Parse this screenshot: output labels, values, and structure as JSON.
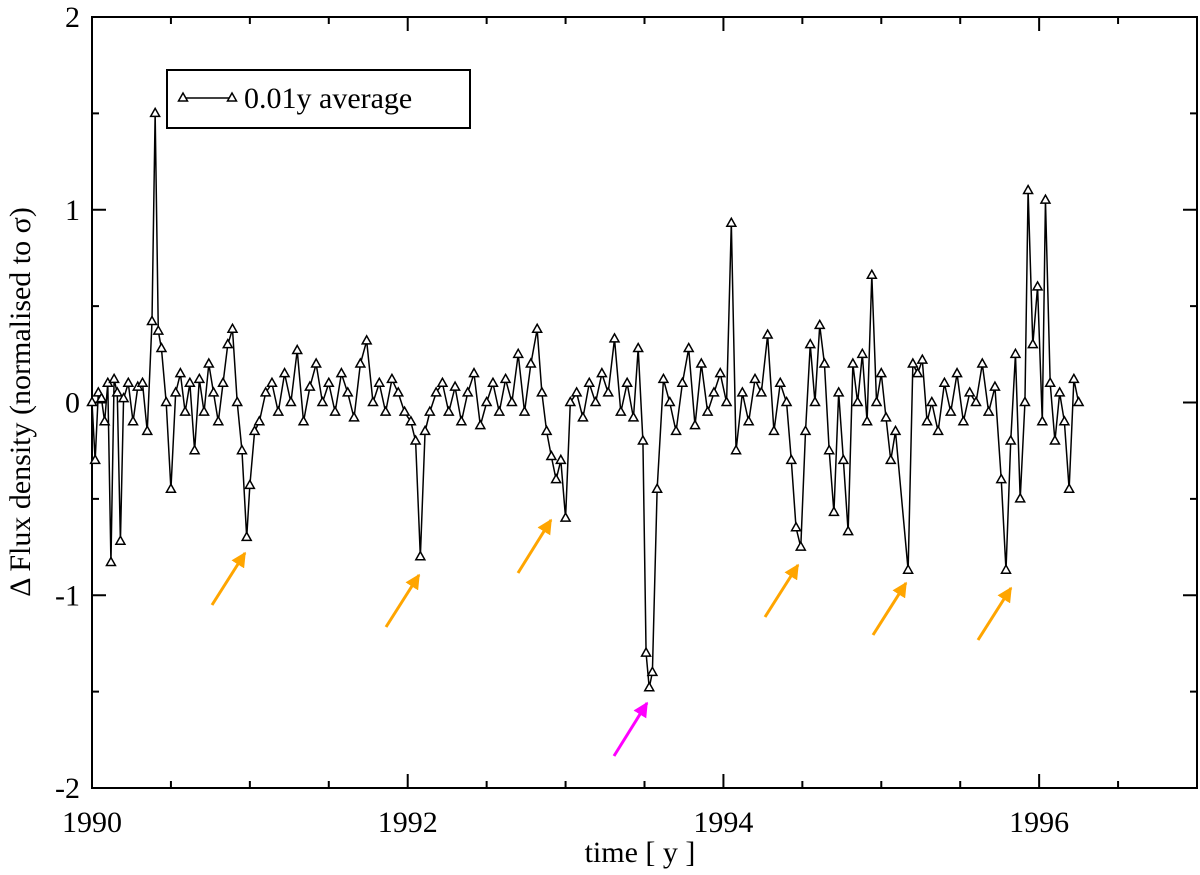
{
  "chart_data": {
    "type": "line",
    "xlabel": "time [ y ]",
    "ylabel": "Δ Flux density (normalised to σ)",
    "xlim": [
      1990,
      1997
    ],
    "xticks": [
      1990,
      1992,
      1994,
      1996
    ],
    "ylim": [
      -2,
      2
    ],
    "yticks": [
      -2,
      -1,
      0,
      1,
      2
    ],
    "legend": "upper left",
    "series": [
      {
        "name": "0.01y average",
        "color": "#000000",
        "x": [
          1990.0,
          1990.02,
          1990.04,
          1990.06,
          1990.08,
          1990.1,
          1990.12,
          1990.14,
          1990.16,
          1990.18,
          1990.2,
          1990.23,
          1990.26,
          1990.29,
          1990.32,
          1990.35,
          1990.38,
          1990.4,
          1990.42,
          1990.44,
          1990.47,
          1990.5,
          1990.53,
          1990.56,
          1990.59,
          1990.62,
          1990.65,
          1990.68,
          1990.71,
          1990.74,
          1990.77,
          1990.8,
          1990.83,
          1990.86,
          1990.89,
          1990.92,
          1990.95,
          1990.98,
          1991.0,
          1991.03,
          1991.06,
          1991.1,
          1991.14,
          1991.18,
          1991.22,
          1991.26,
          1991.3,
          1991.34,
          1991.38,
          1991.42,
          1991.46,
          1991.5,
          1991.54,
          1991.58,
          1991.62,
          1991.66,
          1991.7,
          1991.74,
          1991.78,
          1991.82,
          1991.86,
          1991.9,
          1991.94,
          1991.98,
          1992.02,
          1992.05,
          1992.08,
          1992.11,
          1992.14,
          1992.18,
          1992.22,
          1992.26,
          1992.3,
          1992.34,
          1992.38,
          1992.42,
          1992.46,
          1992.5,
          1992.54,
          1992.58,
          1992.62,
          1992.66,
          1992.7,
          1992.74,
          1992.78,
          1992.82,
          1992.85,
          1992.88,
          1992.91,
          1992.94,
          1992.97,
          1993.0,
          1993.03,
          1993.07,
          1993.11,
          1993.15,
          1993.19,
          1993.23,
          1993.27,
          1993.31,
          1993.35,
          1993.39,
          1993.43,
          1993.46,
          1993.49,
          1993.51,
          1993.53,
          1993.55,
          1993.58,
          1993.62,
          1993.66,
          1993.7,
          1993.74,
          1993.78,
          1993.82,
          1993.86,
          1993.9,
          1993.94,
          1993.98,
          1994.02,
          1994.05,
          1994.08,
          1994.12,
          1994.16,
          1994.2,
          1994.24,
          1994.28,
          1994.32,
          1994.36,
          1994.4,
          1994.43,
          1994.46,
          1994.49,
          1994.52,
          1994.55,
          1994.58,
          1994.61,
          1994.64,
          1994.67,
          1994.7,
          1994.73,
          1994.76,
          1994.79,
          1994.82,
          1994.85,
          1994.88,
          1994.91,
          1994.94,
          1994.97,
          1995.0,
          1995.03,
          1995.06,
          1995.09,
          1995.17,
          1995.2,
          1995.23,
          1995.26,
          1995.29,
          1995.32,
          1995.36,
          1995.4,
          1995.44,
          1995.48,
          1995.52,
          1995.56,
          1995.6,
          1995.64,
          1995.68,
          1995.72,
          1995.76,
          1995.79,
          1995.82,
          1995.85,
          1995.88,
          1995.91,
          1995.93,
          1995.96,
          1995.99,
          1996.02,
          1996.04,
          1996.07,
          1996.1,
          1996.13,
          1996.16,
          1996.19,
          1996.22,
          1996.25
        ],
        "values": [
          0,
          -0.3,
          0.05,
          0.02,
          -0.1,
          0.1,
          -0.83,
          0.12,
          0.05,
          -0.72,
          0.02,
          0.1,
          -0.1,
          0.08,
          0.1,
          -0.15,
          0.42,
          1.5,
          0.37,
          0.28,
          0.0,
          -0.45,
          0.05,
          0.15,
          -0.05,
          0.1,
          -0.25,
          0.12,
          -0.05,
          0.2,
          0.05,
          -0.1,
          0.1,
          0.3,
          0.38,
          0.0,
          -0.25,
          -0.7,
          -0.43,
          -0.15,
          -0.1,
          0.05,
          0.1,
          -0.05,
          0.15,
          0.0,
          0.27,
          -0.1,
          0.08,
          0.2,
          0.0,
          0.1,
          -0.05,
          0.15,
          0.05,
          -0.08,
          0.2,
          0.32,
          0.0,
          0.1,
          -0.05,
          0.12,
          0.05,
          -0.05,
          -0.1,
          -0.2,
          -0.8,
          -0.15,
          -0.05,
          0.05,
          0.1,
          -0.05,
          0.08,
          -0.1,
          0.05,
          0.15,
          -0.12,
          0.0,
          0.1,
          -0.05,
          0.12,
          0.0,
          0.25,
          -0.05,
          0.2,
          0.38,
          0.05,
          -0.15,
          -0.28,
          -0.4,
          -0.3,
          -0.6,
          0.0,
          0.05,
          -0.08,
          0.1,
          0.0,
          0.15,
          0.05,
          0.33,
          -0.05,
          0.1,
          -0.08,
          0.28,
          -0.2,
          -1.3,
          -1.48,
          -1.4,
          -0.45,
          0.12,
          0.0,
          -0.15,
          0.1,
          0.28,
          -0.12,
          0.2,
          -0.05,
          0.05,
          0.15,
          0.0,
          0.93,
          -0.25,
          0.05,
          -0.1,
          0.12,
          0.05,
          0.35,
          -0.15,
          0.1,
          0.0,
          -0.3,
          -0.65,
          -0.75,
          -0.15,
          0.3,
          0.0,
          0.4,
          0.2,
          -0.25,
          -0.57,
          0.05,
          -0.3,
          -0.67,
          0.2,
          0.0,
          0.25,
          -0.1,
          0.66,
          0.0,
          0.15,
          -0.08,
          -0.3,
          -0.15,
          -0.87,
          0.2,
          0.15,
          0.22,
          -0.1,
          0.0,
          -0.15,
          0.1,
          -0.05,
          0.15,
          -0.1,
          0.05,
          0.0,
          0.2,
          -0.05,
          0.08,
          -0.4,
          -0.87,
          -0.2,
          0.25,
          -0.5,
          0.0,
          1.1,
          0.3,
          0.6,
          -0.1,
          1.05,
          0.1,
          -0.2,
          0.05,
          -0.1,
          -0.45,
          0.12,
          0.0
        ]
      }
    ]
  }
}
